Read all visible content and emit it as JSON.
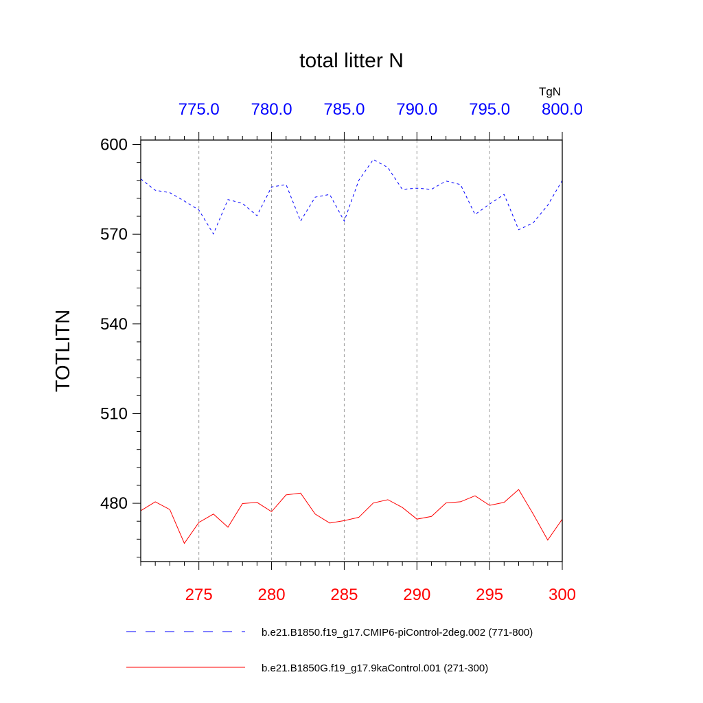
{
  "chart_data": {
    "type": "line",
    "title": "total litter N",
    "ylabel": "TOTLITN",
    "units": "TgN",
    "ylim": [
      460.5,
      601.5
    ],
    "yticks": [
      480,
      510,
      540,
      570,
      600
    ],
    "ytick_labels": [
      "480",
      "510",
      "540",
      "570",
      "600"
    ],
    "bottom_axis": {
      "xlim": [
        271,
        300
      ],
      "ticks": [
        275,
        280,
        285,
        290,
        295,
        300
      ],
      "tick_labels": [
        "275",
        "280",
        "285",
        "290",
        "295",
        "300"
      ],
      "color": "#ff0000"
    },
    "top_axis": {
      "xlim": [
        771,
        800
      ],
      "ticks": [
        775,
        780,
        785,
        790,
        795,
        800
      ],
      "tick_labels": [
        "775.0",
        "780.0",
        "785.0",
        "790.0",
        "795.0",
        "800.0"
      ],
      "color": "#0000ff"
    },
    "series": [
      {
        "name": "b.e21.B1850.f19_g17.CMIP6-piControl-2deg.002 (771-800)",
        "axis": "top",
        "color": "#0000ff",
        "dash": true,
        "x": [
          771,
          772,
          773,
          774,
          775,
          776,
          777,
          778,
          779,
          780,
          781,
          782,
          783,
          784,
          785,
          786,
          787,
          788,
          789,
          790,
          791,
          792,
          793,
          794,
          795,
          796,
          797,
          798,
          799,
          800
        ],
        "values": [
          588.5,
          584.7,
          583.9,
          581.1,
          578.1,
          570.1,
          581.6,
          580.3,
          576.2,
          585.8,
          586.6,
          574.4,
          582.4,
          583.3,
          574.4,
          588.0,
          595.0,
          592.3,
          585.0,
          585.4,
          585.0,
          587.8,
          586.6,
          576.6,
          580.1,
          583.3,
          571.5,
          573.8,
          579.7,
          588.0
        ]
      },
      {
        "name": "b.e21.B1850G.f19_g17.9kaControl.001 (271-300)",
        "axis": "bottom",
        "color": "#ff0000",
        "dash": false,
        "x": [
          271,
          272,
          273,
          274,
          275,
          276,
          277,
          278,
          279,
          280,
          281,
          282,
          283,
          284,
          285,
          286,
          287,
          288,
          289,
          290,
          291,
          292,
          293,
          294,
          295,
          296,
          297,
          298,
          299,
          300
        ],
        "values": [
          477.5,
          480.5,
          477.9,
          466.6,
          473.6,
          476.4,
          472.0,
          479.9,
          480.3,
          477.2,
          482.8,
          483.4,
          476.4,
          473.4,
          474.2,
          475.3,
          480.1,
          481.2,
          478.6,
          474.7,
          475.6,
          480.1,
          480.5,
          482.5,
          479.3,
          480.3,
          484.6,
          476.4,
          467.7,
          474.7
        ]
      }
    ]
  }
}
